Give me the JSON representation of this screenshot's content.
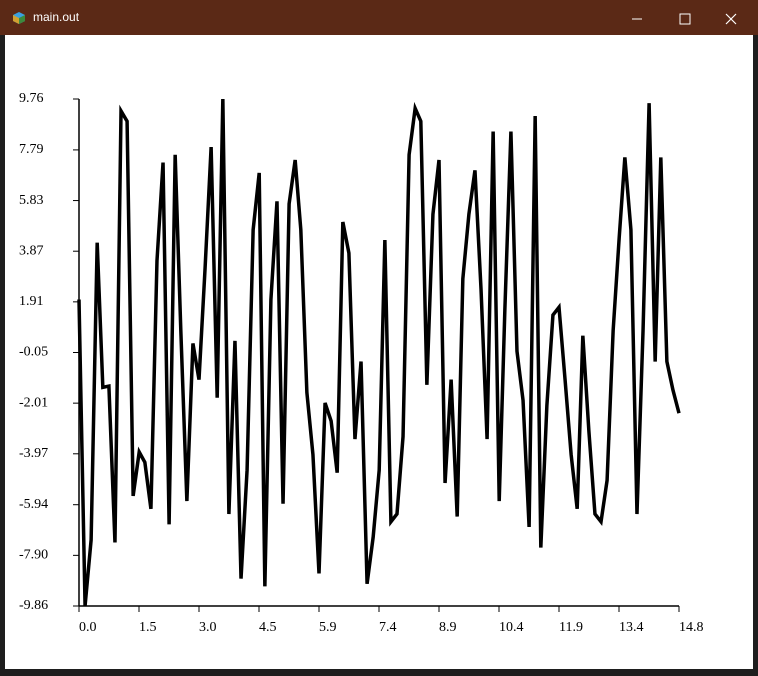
{
  "window": {
    "title": "main.out"
  },
  "chart_data": {
    "type": "line",
    "x": [
      0,
      0.15,
      0.3,
      0.45,
      0.59,
      0.74,
      0.89,
      1.04,
      1.19,
      1.34,
      1.49,
      1.63,
      1.78,
      1.93,
      2.08,
      2.23,
      2.38,
      2.52,
      2.67,
      2.82,
      2.97,
      3.12,
      3.27,
      3.42,
      3.56,
      3.71,
      3.86,
      4.01,
      4.16,
      4.31,
      4.46,
      4.6,
      4.75,
      4.9,
      5.05,
      5.2,
      5.35,
      5.49,
      5.64,
      5.79,
      5.94,
      6.09,
      6.24,
      6.39,
      6.53,
      6.68,
      6.83,
      6.98,
      7.13,
      7.28,
      7.43,
      7.57,
      7.72,
      7.87,
      8.02,
      8.17,
      8.32,
      8.46,
      8.61,
      8.76,
      8.91,
      9.06,
      9.21,
      9.36,
      9.5,
      9.65,
      9.8,
      9.95,
      10.1,
      10.25,
      10.4,
      10.54,
      10.69,
      10.84,
      10.99,
      11.14,
      11.29,
      11.43,
      11.58,
      11.73,
      11.88,
      12.03,
      12.18,
      12.33,
      12.47,
      12.62,
      12.77,
      12.92,
      13.07,
      13.22,
      13.37,
      13.51,
      13.66,
      13.81,
      13.96,
      14.11,
      14.26,
      14.4,
      14.55,
      14.7,
      14.85
    ],
    "series": [
      {
        "color": "#000000",
        "values": [
          2.0,
          -9.86,
          -7.3,
          4.2,
          -1.4,
          -1.35,
          -7.4,
          9.3,
          8.9,
          -5.6,
          -3.9,
          -4.3,
          -6.1,
          3.5,
          7.3,
          -6.7,
          7.6,
          0.8,
          -5.8,
          0.3,
          -1.1,
          3.2,
          7.9,
          -1.8,
          9.76,
          -6.3,
          0.4,
          -8.8,
          -4.6,
          4.7,
          6.9,
          -9.1,
          2.0,
          5.8,
          -5.9,
          5.7,
          7.4,
          4.7,
          -1.6,
          -4.0,
          -8.6,
          -2.0,
          -2.7,
          -4.7,
          5.0,
          3.8,
          -3.4,
          -0.4,
          -9.0,
          -7.2,
          -4.6,
          4.3,
          -6.6,
          -6.3,
          -3.3,
          7.6,
          9.4,
          8.9,
          -1.3,
          5.3,
          7.4,
          -5.1,
          -1.1,
          -6.4,
          2.8,
          5.3,
          7.0,
          2.4,
          -3.4,
          8.5,
          -5.8,
          1.6,
          8.5,
          0.0,
          -1.9,
          -6.8,
          9.1,
          -7.6,
          -2.1,
          1.4,
          1.7,
          -1.1,
          -4.0,
          -6.1,
          0.6,
          -3.1,
          -6.3,
          -6.6,
          -5.0,
          0.8,
          4.4,
          7.5,
          4.7,
          -6.3,
          0.8,
          9.6,
          -0.4,
          7.5,
          -0.4,
          -1.5,
          -2.4
        ]
      }
    ],
    "xlim": [
      0,
      14.85
    ],
    "ylim": [
      -9.86,
      9.76
    ],
    "xticks": [
      {
        "value": 0,
        "label": "0.0"
      },
      {
        "value": 1.485,
        "label": "1.5"
      },
      {
        "value": 2.97,
        "label": "3.0"
      },
      {
        "value": 4.455,
        "label": "4.5"
      },
      {
        "value": 5.94,
        "label": "5.9"
      },
      {
        "value": 7.425,
        "label": "7.4"
      },
      {
        "value": 8.91,
        "label": "8.9"
      },
      {
        "value": 10.395,
        "label": "10.4"
      },
      {
        "value": 11.88,
        "label": "11.9"
      },
      {
        "value": 13.365,
        "label": "13.4"
      },
      {
        "value": 14.85,
        "label": "14.8"
      }
    ],
    "yticks": [
      -9.86,
      {
        "value": -7.9,
        "label": "-7.90"
      },
      -5.94,
      -3.97,
      -2.01,
      -0.05,
      1.91,
      3.87,
      5.83,
      7.79,
      9.76
    ],
    "grid": false
  }
}
